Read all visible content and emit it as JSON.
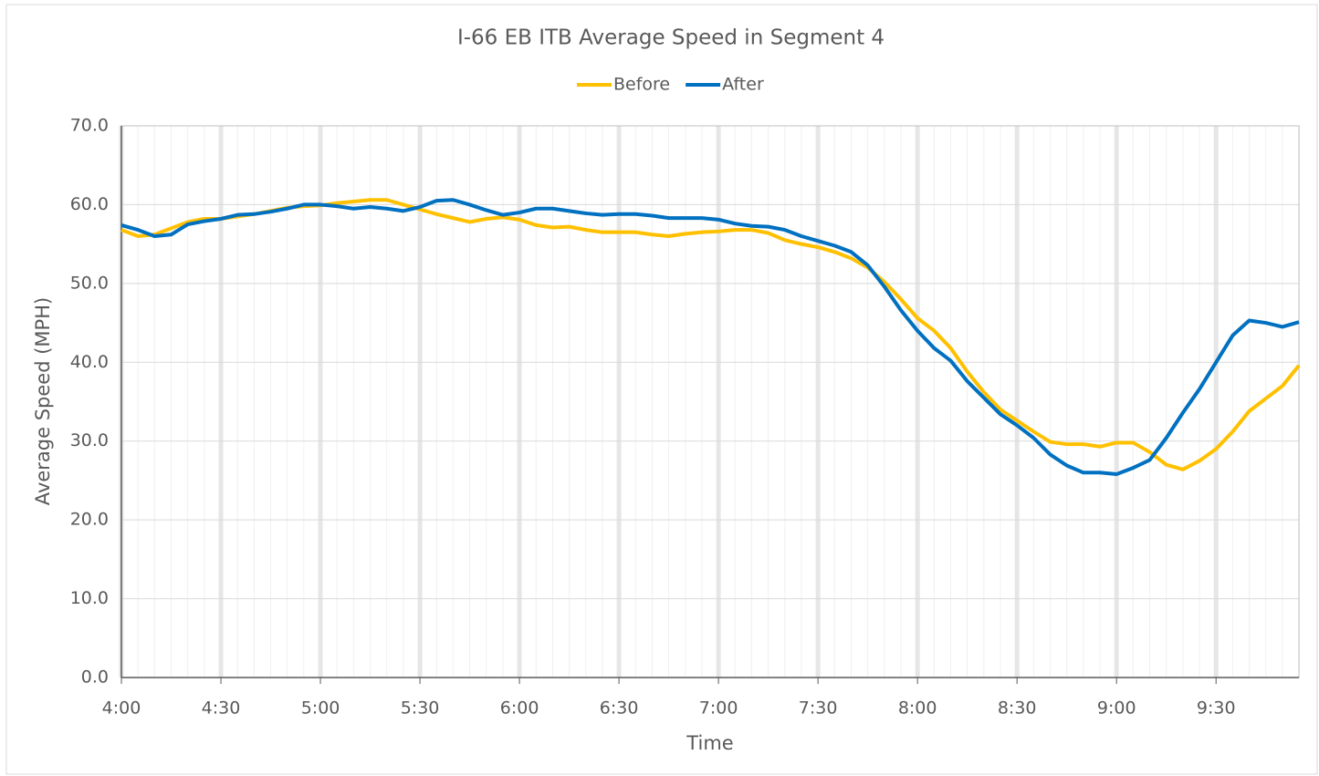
{
  "chart_data": {
    "type": "line",
    "title": "I-66 EB ITB Average Speed in Segment 4",
    "x_label": "Time",
    "y_label": "Average Speed (MPH)",
    "categories": [
      "4:00",
      null,
      null,
      null,
      null,
      null,
      "4:30",
      null,
      null,
      null,
      null,
      null,
      "5:00",
      null,
      null,
      null,
      null,
      null,
      "5:30",
      null,
      null,
      null,
      null,
      null,
      "6:00",
      null,
      null,
      null,
      null,
      null,
      "6:30",
      null,
      null,
      null,
      null,
      null,
      "7:00",
      null,
      null,
      null,
      null,
      null,
      "7:30",
      null,
      null,
      null,
      null,
      null,
      "8:00",
      null,
      null,
      null,
      null,
      null,
      "8:30",
      null,
      null,
      null,
      null,
      null,
      "9:00",
      null,
      null,
      null,
      null,
      null,
      "9:30",
      null,
      null,
      null,
      null,
      null
    ],
    "series": [
      {
        "name": "Before",
        "color": "#ffc000",
        "values": [
          56.8,
          56.0,
          56.2,
          57.0,
          57.8,
          58.2,
          58.2,
          58.5,
          58.8,
          59.2,
          59.6,
          59.8,
          59.9,
          60.2,
          60.4,
          60.6,
          60.6,
          60.0,
          59.4,
          58.8,
          58.3,
          57.8,
          58.2,
          58.4,
          58.1,
          57.4,
          57.1,
          57.2,
          56.8,
          56.5,
          56.5,
          56.5,
          56.2,
          56.0,
          56.3,
          56.5,
          56.6,
          56.8,
          56.8,
          56.4,
          55.5,
          55.0,
          54.6,
          54.0,
          53.2,
          52.0,
          50.2,
          48.0,
          45.6,
          44.0,
          41.8,
          38.8,
          36.2,
          34.0,
          32.6,
          31.2,
          29.9,
          29.6,
          29.6,
          29.3,
          29.8,
          29.8,
          28.6,
          27.0,
          26.4,
          27.5,
          29.0,
          31.2,
          33.8,
          35.4,
          37.0,
          39.6
        ]
      },
      {
        "name": "After",
        "color": "#0070c0",
        "values": [
          57.4,
          56.8,
          56.0,
          56.2,
          57.5,
          57.9,
          58.2,
          58.7,
          58.8,
          59.1,
          59.5,
          60.0,
          60.0,
          59.8,
          59.5,
          59.7,
          59.5,
          59.2,
          59.7,
          60.5,
          60.6,
          60.0,
          59.3,
          58.7,
          59.0,
          59.5,
          59.5,
          59.2,
          58.9,
          58.7,
          58.8,
          58.8,
          58.6,
          58.3,
          58.3,
          58.3,
          58.1,
          57.6,
          57.3,
          57.2,
          56.8,
          56.0,
          55.4,
          54.8,
          54.0,
          52.3,
          49.6,
          46.6,
          44.0,
          41.8,
          40.2,
          37.6,
          35.5,
          33.4,
          32.0,
          30.4,
          28.3,
          26.9,
          26.0,
          26.0,
          25.8,
          26.6,
          27.6,
          30.4,
          33.6,
          36.6,
          40.0,
          43.4,
          45.3,
          45.0,
          44.5,
          45.1
        ]
      }
    ],
    "ylim": [
      0,
      70
    ],
    "yticks": [
      {
        "value": 0,
        "label": "0.0"
      },
      {
        "value": 10,
        "label": "10.0"
      },
      {
        "value": 20,
        "label": "20.0"
      },
      {
        "value": 30,
        "label": "30.0"
      },
      {
        "value": 40,
        "label": "40.0"
      },
      {
        "value": 50,
        "label": "50.0"
      },
      {
        "value": 60,
        "label": "60.0"
      },
      {
        "value": 70,
        "label": "70.0"
      }
    ],
    "grid": true,
    "legend": "top"
  }
}
